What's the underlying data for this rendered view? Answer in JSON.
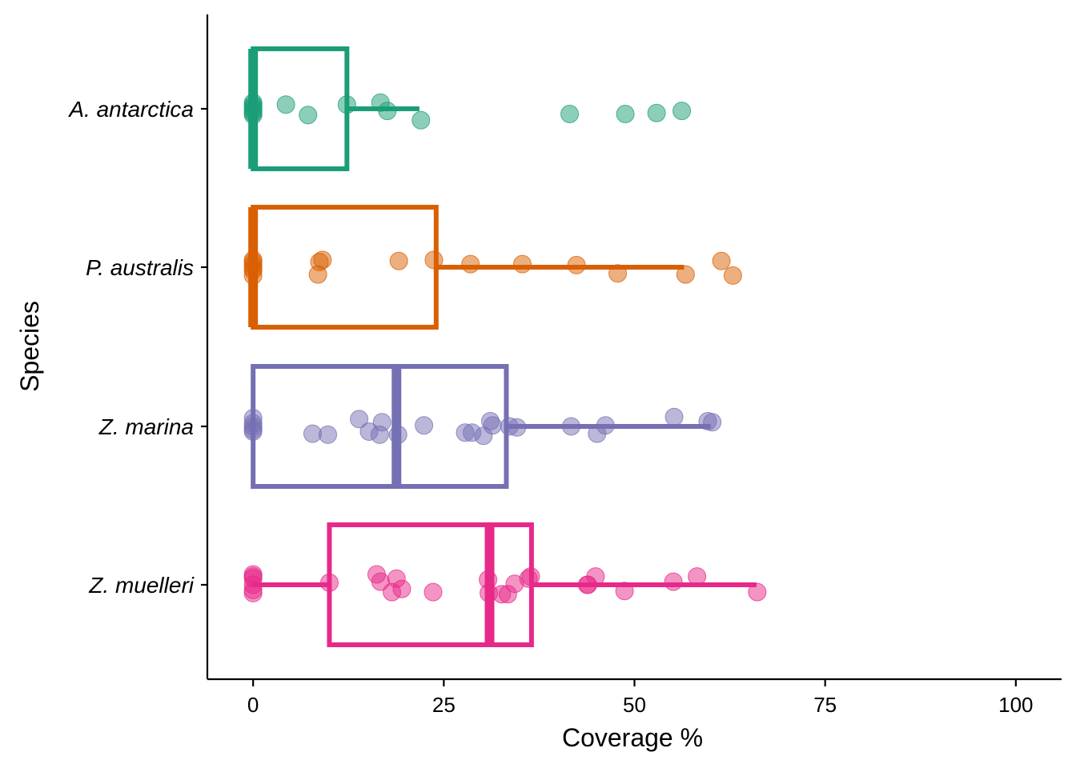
{
  "chart_data": {
    "type": "boxplot",
    "title": "",
    "xlabel": "Coverage %",
    "ylabel": "Species",
    "xlim": [
      -6,
      106
    ],
    "xticks": [
      0,
      25,
      50,
      75,
      100
    ],
    "grid": false,
    "legend": "none",
    "categories": [
      "A. antarctica",
      "P. australis",
      "Z. marina",
      "Z. muelleri"
    ],
    "series": [
      {
        "category": "A. antarctica",
        "color": "#1B9E77",
        "box": {
          "min": 0,
          "q1": 0,
          "median": 0,
          "q3": 12.3,
          "max": 21.8
        },
        "points": [
          [
            0,
            0.06
          ],
          [
            0,
            0.02
          ],
          [
            0,
            -0.02
          ],
          [
            0,
            -0.06
          ],
          [
            0,
            0.04
          ],
          [
            0,
            -0.04
          ],
          [
            0,
            0.0
          ],
          [
            4.3,
            0.04
          ],
          [
            7.2,
            -0.06
          ],
          [
            12.3,
            0.04
          ],
          [
            16.7,
            0.06
          ],
          [
            17.6,
            -0.02
          ],
          [
            22.0,
            -0.11
          ],
          [
            41.5,
            -0.05
          ],
          [
            48.8,
            -0.05
          ],
          [
            52.9,
            -0.04
          ],
          [
            56.2,
            -0.02
          ]
        ]
      },
      {
        "category": "P. australis",
        "color": "#D95F02",
        "box": {
          "min": 0,
          "q1": 0,
          "median": 0,
          "q3": 24.0,
          "max": 56.5
        },
        "points": [
          [
            0,
            0.07
          ],
          [
            0,
            0.02
          ],
          [
            0,
            -0.03
          ],
          [
            0,
            -0.08
          ],
          [
            0,
            0.05
          ],
          [
            0,
            -0.01
          ],
          [
            8.7,
            0.05
          ],
          [
            9.1,
            0.07
          ],
          [
            8.5,
            -0.07
          ],
          [
            19.1,
            0.06
          ],
          [
            23.7,
            0.07
          ],
          [
            28.5,
            0.03
          ],
          [
            35.3,
            0.03
          ],
          [
            42.4,
            0.02
          ],
          [
            47.8,
            -0.06
          ],
          [
            56.7,
            -0.07
          ],
          [
            61.4,
            0.06
          ],
          [
            62.9,
            -0.08
          ]
        ]
      },
      {
        "category": "Z. marina",
        "color": "#7570B3",
        "box": {
          "min": 0,
          "q1": 0,
          "median": 18.8,
          "q3": 33.2,
          "max": 60.0
        },
        "points": [
          [
            0,
            0.08
          ],
          [
            0,
            0.03
          ],
          [
            0,
            -0.03
          ],
          [
            0,
            -0.05
          ],
          [
            0,
            0.0
          ],
          [
            7.8,
            -0.07
          ],
          [
            9.8,
            -0.08
          ],
          [
            13.9,
            0.07
          ],
          [
            15.2,
            -0.05
          ],
          [
            16.6,
            -0.08
          ],
          [
            16.9,
            0.04
          ],
          [
            19.0,
            -0.08
          ],
          [
            22.4,
            0.01
          ],
          [
            27.8,
            -0.06
          ],
          [
            28.7,
            -0.06
          ],
          [
            30.2,
            -0.09
          ],
          [
            31.1,
            0.05
          ],
          [
            31.4,
            0.01
          ],
          [
            33.6,
            0.0
          ],
          [
            34.6,
            -0.01
          ],
          [
            41.7,
            0.0
          ],
          [
            45.1,
            -0.07
          ],
          [
            46.2,
            0.01
          ],
          [
            55.2,
            0.09
          ],
          [
            59.6,
            0.05
          ],
          [
            60.2,
            0.04
          ]
        ]
      },
      {
        "category": "Z. muelleri",
        "color": "#E7298A",
        "box": {
          "min": 0,
          "q1": 10.0,
          "median": 31.0,
          "q3": 36.5,
          "max": 66.0
        },
        "points": [
          [
            0,
            0.1
          ],
          [
            0,
            0.08
          ],
          [
            0,
            0.0
          ],
          [
            0,
            -0.05
          ],
          [
            0,
            -0.08
          ],
          [
            0,
            0.06
          ],
          [
            10.0,
            0.02
          ],
          [
            16.2,
            0.1
          ],
          [
            16.7,
            0.03
          ],
          [
            18.8,
            0.06
          ],
          [
            18.2,
            -0.07
          ],
          [
            19.5,
            -0.04
          ],
          [
            23.6,
            -0.07
          ],
          [
            30.8,
            0.05
          ],
          [
            30.9,
            -0.08
          ],
          [
            32.6,
            -0.09
          ],
          [
            33.4,
            -0.09
          ],
          [
            34.3,
            0.01
          ],
          [
            36.1,
            0.06
          ],
          [
            36.4,
            0.08
          ],
          [
            43.8,
            0.0
          ],
          [
            43.9,
            0.0
          ],
          [
            44.9,
            0.08
          ],
          [
            48.7,
            -0.06
          ],
          [
            55.1,
            0.03
          ],
          [
            58.2,
            0.08
          ],
          [
            66.1,
            -0.07
          ]
        ]
      }
    ]
  }
}
